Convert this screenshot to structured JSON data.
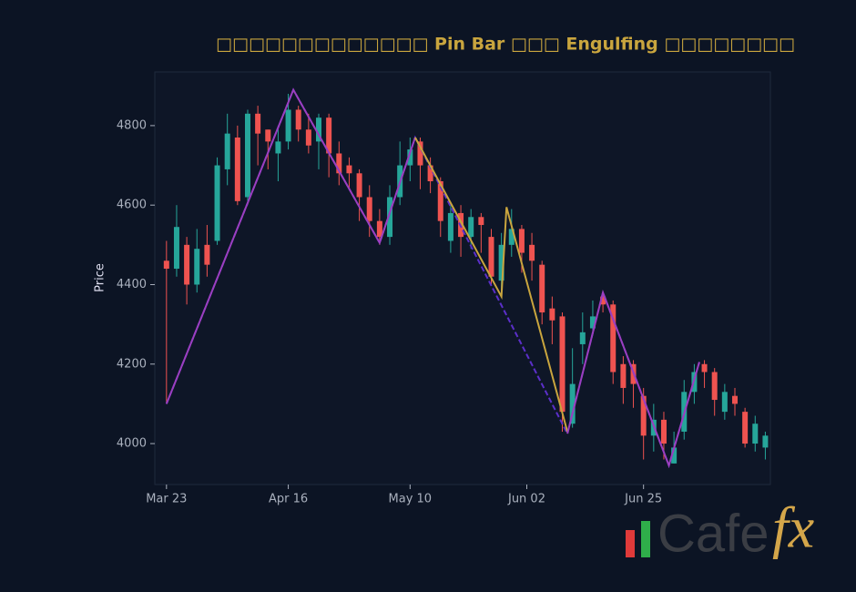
{
  "chart_data": {
    "type": "candlestick",
    "title": "□□□□□□□□□□□□□ Pin Bar □□□ Engulfing □□□□□□□□",
    "y_label": "Price",
    "x": [
      0,
      2,
      4,
      6,
      8,
      10,
      12,
      14,
      16,
      18,
      20,
      22,
      24,
      26,
      28,
      30,
      32,
      34,
      36,
      38,
      40,
      42,
      44,
      46,
      48,
      50,
      52,
      54,
      56,
      58,
      60,
      62,
      64,
      66,
      68,
      70,
      72,
      74,
      76,
      78,
      80,
      82,
      84,
      86,
      88,
      90,
      92,
      94,
      96,
      98,
      100,
      102,
      104,
      106,
      108,
      110,
      112,
      114,
      116,
      118
    ],
    "open": [
      4460,
      4440,
      4500,
      4400,
      4500,
      4510,
      4690,
      4770,
      4620,
      4830,
      4790,
      4730,
      4760,
      4840,
      4790,
      4760,
      4820,
      4730,
      4700,
      4680,
      4620,
      4560,
      4520,
      4620,
      4700,
      4760,
      4700,
      4660,
      4510,
      4580,
      4520,
      4570,
      4520,
      4410,
      4500,
      4540,
      4500,
      4450,
      4340,
      4320,
      4050,
      4250,
      4290,
      4370,
      4350,
      4200,
      4200,
      4120,
      4020,
      4060,
      3950,
      4030,
      4130,
      4200,
      4180,
      4080,
      4120,
      4080,
      4000,
      3990
    ],
    "high": [
      4510,
      4600,
      4520,
      4540,
      4550,
      4720,
      4830,
      4800,
      4840,
      4850,
      4790,
      4800,
      4880,
      4850,
      4830,
      4830,
      4830,
      4760,
      4720,
      4690,
      4650,
      4590,
      4650,
      4760,
      4770,
      4770,
      4720,
      4670,
      4600,
      4600,
      4590,
      4580,
      4540,
      4530,
      4590,
      4550,
      4530,
      4460,
      4370,
      4330,
      4240,
      4330,
      4360,
      4380,
      4360,
      4220,
      4210,
      4140,
      4100,
      4080,
      4030,
      4160,
      4200,
      4210,
      4190,
      4150,
      4140,
      4090,
      4070,
      4030
    ],
    "low": [
      4100,
      4420,
      4350,
      4380,
      4420,
      4500,
      4650,
      4600,
      4600,
      4700,
      4690,
      4660,
      4740,
      4760,
      4730,
      4690,
      4670,
      4650,
      4640,
      4560,
      4520,
      4500,
      4500,
      4600,
      4660,
      4640,
      4630,
      4520,
      4480,
      4470,
      4490,
      4480,
      4400,
      4370,
      4470,
      4430,
      4410,
      4300,
      4250,
      4030,
      4040,
      4200,
      4280,
      4330,
      4150,
      4100,
      4090,
      3960,
      3980,
      3960,
      3950,
      4010,
      4100,
      4140,
      4070,
      4060,
      4070,
      3990,
      3980,
      3960
    ],
    "close": [
      4440,
      4545,
      4400,
      4490,
      4450,
      4700,
      4780,
      4610,
      4830,
      4780,
      4760,
      4760,
      4840,
      4790,
      4750,
      4820,
      4730,
      4680,
      4680,
      4620,
      4560,
      4520,
      4620,
      4700,
      4740,
      4700,
      4660,
      4560,
      4580,
      4520,
      4570,
      4550,
      4420,
      4500,
      4540,
      4480,
      4460,
      4330,
      4310,
      4080,
      4150,
      4280,
      4320,
      4350,
      4180,
      4140,
      4150,
      4020,
      4060,
      4000,
      3990,
      4130,
      4180,
      4180,
      4110,
      4130,
      4100,
      4000,
      4050,
      4020
    ],
    "up_color": "#26a69a",
    "down_color": "#ef5350",
    "lines": [
      {
        "color": "#5b2fc9",
        "dash": true,
        "x": [
          0,
          25,
          42,
          49,
          79,
          86,
          99,
          105
        ],
        "values": [
          4100,
          4890,
          4505,
          4770,
          4025,
          4380,
          3945,
          4205
        ]
      },
      {
        "color": "#9b3fc0",
        "dash": false,
        "x": [
          0,
          25,
          42,
          49
        ],
        "values": [
          4100,
          4890,
          4505,
          4770
        ]
      },
      {
        "color": "#c9a53e",
        "dash": false,
        "x": [
          49,
          66,
          67,
          79
        ],
        "values": [
          4770,
          4370,
          4595,
          4030
        ]
      },
      {
        "color": "#9b3fc0",
        "dash": false,
        "x": [
          79,
          86,
          99,
          105
        ],
        "values": [
          4025,
          4380,
          3945,
          4205
        ]
      }
    ],
    "xlim": [
      -2.3,
      119
    ],
    "xticks": [
      {
        "value": 0,
        "label": "Mar 23"
      },
      {
        "value": 24,
        "label": "Apr 16"
      },
      {
        "value": 48,
        "label": "May 10"
      },
      {
        "value": 71,
        "label": "Jun 02"
      },
      {
        "value": 94,
        "label": "Jun 25"
      }
    ],
    "ylim": [
      3897,
      4935
    ],
    "yticks": [
      4000,
      4200,
      4400,
      4600,
      4800
    ],
    "logo": {
      "prefix": "Cafe",
      "suffix": "fx"
    }
  }
}
